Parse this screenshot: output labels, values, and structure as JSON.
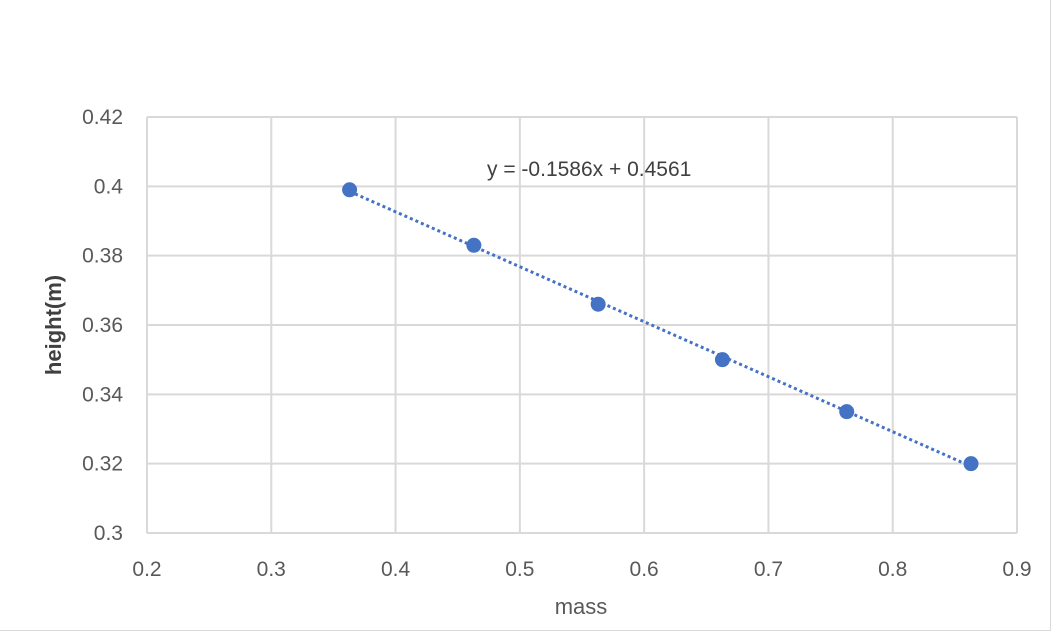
{
  "chart_data": {
    "type": "scatter",
    "title": "",
    "xlabel": "mass",
    "ylabel": "height(m)",
    "xlim": [
      0.2,
      0.9
    ],
    "ylim": [
      0.3,
      0.42
    ],
    "xticks": [
      0.2,
      0.3,
      0.4,
      0.5,
      0.6,
      0.7,
      0.8,
      0.9
    ],
    "yticks": [
      0.3,
      0.32,
      0.34,
      0.36,
      0.38,
      0.4,
      0.42
    ],
    "grid": true,
    "legend": "none",
    "series": [
      {
        "x": [
          0.363,
          0.463,
          0.563,
          0.663,
          0.763,
          0.863
        ],
        "y": [
          0.399,
          0.383,
          0.366,
          0.35,
          0.335,
          0.32
        ],
        "color": "#4472C4"
      }
    ],
    "trendline": {
      "type": "linear",
      "slope": -0.1586,
      "intercept": 0.4561,
      "style": "dotted",
      "color": "#4472C4",
      "label": "y = -0.1586x + 0.4561"
    }
  }
}
